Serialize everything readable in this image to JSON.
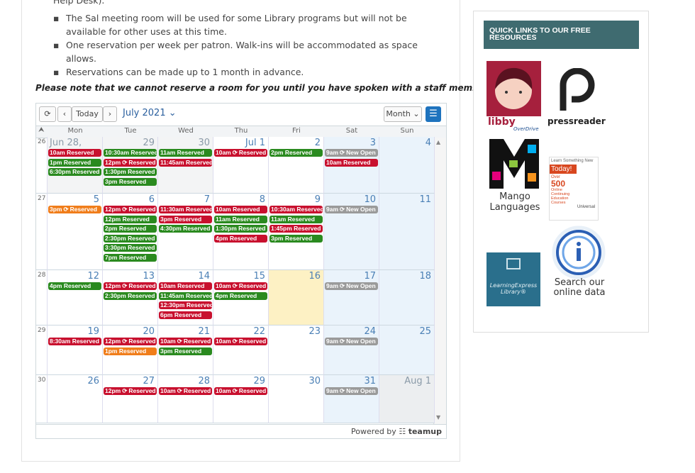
{
  "content": {
    "top_fragment": "Help Desk).",
    "bullets": [
      "The Sal meeting room will be used for some Library programs but will not be available for other uses at this time.",
      "One reservation per week per patron. Walk-ins will be accommodated as space allows.",
      "Reservations can be made up to 1 month in advance."
    ],
    "note": "Please note that we cannot reserve a room for you until you have spoken with a staff member."
  },
  "calendar": {
    "today_button": "Today",
    "month_title": "July 2021",
    "view_button": "Month",
    "weekdays": [
      "Mon",
      "Tue",
      "Wed",
      "Thu",
      "Fri",
      "Sat",
      "Sun"
    ],
    "footer_text": "Powered by",
    "footer_brand": "teamup",
    "weeks": [
      {
        "number": "26",
        "days": [
          {
            "date": "Jun 28, 2021",
            "other_month": true,
            "events": [
              {
                "time": "10am",
                "status": "Reserved",
                "repeat": false,
                "color": "#c8102e"
              },
              {
                "time": "1pm",
                "status": "Reserved",
                "repeat": false,
                "color": "#2a8a1f"
              },
              {
                "time": "6:30pm",
                "status": "Reserved",
                "repeat": false,
                "color": "#2a8a1f"
              }
            ]
          },
          {
            "date": "29",
            "other_month": true,
            "events": [
              {
                "time": "10:30am",
                "status": "Reserved",
                "repeat": false,
                "color": "#2a8a1f"
              },
              {
                "time": "12pm",
                "status": "Reserved",
                "repeat": true,
                "color": "#c8102e"
              },
              {
                "time": "1:30pm",
                "status": "Reserved",
                "repeat": false,
                "color": "#2a8a1f"
              },
              {
                "time": "3pm",
                "status": "Reserved",
                "repeat": false,
                "color": "#2a8a1f"
              }
            ]
          },
          {
            "date": "30",
            "other_month": true,
            "events": [
              {
                "time": "11am",
                "status": "Reserved",
                "repeat": false,
                "color": "#2a8a1f"
              },
              {
                "time": "11:45am",
                "status": "Reserved",
                "repeat": false,
                "color": "#c8102e"
              }
            ]
          },
          {
            "date": "Jul 1",
            "events": [
              {
                "time": "10am",
                "status": "Reserved",
                "repeat": true,
                "color": "#c8102e"
              }
            ]
          },
          {
            "date": "2",
            "events": [
              {
                "time": "2pm",
                "status": "Reserved",
                "repeat": false,
                "color": "#2a8a1f"
              }
            ]
          },
          {
            "date": "3",
            "events": [
              {
                "time": "9am",
                "status": "New Open",
                "repeat": true,
                "color": "#9a9a9a"
              },
              {
                "time": "10am",
                "status": "Reserved",
                "repeat": false,
                "color": "#c8102e"
              }
            ]
          },
          {
            "date": "4",
            "events": []
          }
        ]
      },
      {
        "number": "27",
        "days": [
          {
            "date": "5",
            "events": [
              {
                "time": "3pm",
                "status": "Reserved",
                "repeat": true,
                "color": "#f07d1a"
              }
            ]
          },
          {
            "date": "6",
            "events": [
              {
                "time": "12pm",
                "status": "Reserved",
                "repeat": true,
                "color": "#c8102e"
              },
              {
                "time": "12pm",
                "status": "Reserved",
                "repeat": false,
                "color": "#2a8a1f"
              },
              {
                "time": "2pm",
                "status": "Reserved",
                "repeat": false,
                "color": "#2a8a1f"
              },
              {
                "time": "2:30pm",
                "status": "Reserved",
                "repeat": false,
                "color": "#2a8a1f"
              },
              {
                "time": "3:30pm",
                "status": "Reserved",
                "repeat": false,
                "color": "#2a8a1f"
              },
              {
                "time": "7pm",
                "status": "Reserved",
                "repeat": false,
                "color": "#2a8a1f"
              }
            ]
          },
          {
            "date": "7",
            "events": [
              {
                "time": "11:30am",
                "status": "Reserved",
                "repeat": false,
                "color": "#c8102e"
              },
              {
                "time": "3pm",
                "status": "Reserved",
                "repeat": false,
                "color": "#c8102e"
              },
              {
                "time": "4:30pm",
                "status": "Reserved",
                "repeat": false,
                "color": "#2a8a1f"
              }
            ]
          },
          {
            "date": "8",
            "events": [
              {
                "time": "10am",
                "status": "Reserved",
                "repeat": false,
                "color": "#c8102e"
              },
              {
                "time": "11am",
                "status": "Reserved",
                "repeat": false,
                "color": "#2a8a1f"
              },
              {
                "time": "1:30pm",
                "status": "Reserved",
                "repeat": false,
                "color": "#2a8a1f"
              },
              {
                "time": "4pm",
                "status": "Reserved",
                "repeat": false,
                "color": "#c8102e"
              }
            ]
          },
          {
            "date": "9",
            "events": [
              {
                "time": "10:30am",
                "status": "Reserved",
                "repeat": false,
                "color": "#c8102e"
              },
              {
                "time": "11am",
                "status": "Reserved",
                "repeat": false,
                "color": "#2a8a1f"
              },
              {
                "time": "1:45pm",
                "status": "Reserved",
                "repeat": false,
                "color": "#c8102e"
              },
              {
                "time": "3pm",
                "status": "Reserved",
                "repeat": false,
                "color": "#2a8a1f"
              }
            ]
          },
          {
            "date": "10",
            "events": [
              {
                "time": "9am",
                "status": "New Open",
                "repeat": true,
                "color": "#9a9a9a"
              }
            ]
          },
          {
            "date": "11",
            "events": []
          }
        ]
      },
      {
        "number": "28",
        "days": [
          {
            "date": "12",
            "events": [
              {
                "time": "4pm",
                "status": "Reserved",
                "repeat": false,
                "color": "#2a8a1f"
              }
            ]
          },
          {
            "date": "13",
            "events": [
              {
                "time": "12pm",
                "status": "Reserved",
                "repeat": true,
                "color": "#c8102e"
              },
              {
                "time": "2:30pm",
                "status": "Reserved",
                "repeat": false,
                "color": "#2a8a1f"
              }
            ]
          },
          {
            "date": "14",
            "events": [
              {
                "time": "10am",
                "status": "Reserved",
                "repeat": false,
                "color": "#c8102e"
              },
              {
                "time": "11:45am",
                "status": "Reserved",
                "repeat": false,
                "color": "#2a8a1f"
              },
              {
                "time": "12:30pm",
                "status": "Reserved",
                "repeat": false,
                "color": "#c8102e"
              },
              {
                "time": "6pm",
                "status": "Reserved",
                "repeat": false,
                "color": "#c8102e"
              }
            ]
          },
          {
            "date": "15",
            "events": [
              {
                "time": "10am",
                "status": "Reserved",
                "repeat": true,
                "color": "#c8102e"
              },
              {
                "time": "4pm",
                "status": "Reserved",
                "repeat": false,
                "color": "#2a8a1f"
              }
            ]
          },
          {
            "date": "16",
            "today": true,
            "events": []
          },
          {
            "date": "17",
            "events": [
              {
                "time": "9am",
                "status": "New Open",
                "repeat": true,
                "color": "#9a9a9a"
              }
            ]
          },
          {
            "date": "18",
            "events": []
          }
        ]
      },
      {
        "number": "29",
        "days": [
          {
            "date": "19",
            "events": [
              {
                "time": "8:30am",
                "status": "Reserved",
                "repeat": false,
                "color": "#c8102e"
              }
            ]
          },
          {
            "date": "20",
            "events": [
              {
                "time": "12pm",
                "status": "Reserved",
                "repeat": true,
                "color": "#c8102e"
              },
              {
                "time": "1pm",
                "status": "Reserved",
                "repeat": false,
                "color": "#f07d1a"
              }
            ]
          },
          {
            "date": "21",
            "events": [
              {
                "time": "10am",
                "status": "Reserved",
                "repeat": true,
                "color": "#c8102e"
              },
              {
                "time": "3pm",
                "status": "Reserved",
                "repeat": false,
                "color": "#2a8a1f"
              }
            ]
          },
          {
            "date": "22",
            "events": [
              {
                "time": "10am",
                "status": "Reserved",
                "repeat": true,
                "color": "#c8102e"
              }
            ]
          },
          {
            "date": "23",
            "events": []
          },
          {
            "date": "24",
            "events": [
              {
                "time": "9am",
                "status": "New Open",
                "repeat": true,
                "color": "#9a9a9a"
              }
            ]
          },
          {
            "date": "25",
            "events": []
          }
        ]
      },
      {
        "number": "30",
        "days": [
          {
            "date": "26",
            "events": []
          },
          {
            "date": "27",
            "events": [
              {
                "time": "12pm",
                "status": "Reserved",
                "repeat": true,
                "color": "#c8102e"
              }
            ]
          },
          {
            "date": "28",
            "events": [
              {
                "time": "10am",
                "status": "Reserved",
                "repeat": true,
                "color": "#c8102e"
              }
            ]
          },
          {
            "date": "29",
            "events": [
              {
                "time": "10am",
                "status": "Reserved",
                "repeat": true,
                "color": "#c8102e"
              }
            ]
          },
          {
            "date": "30",
            "events": []
          },
          {
            "date": "31",
            "events": [
              {
                "time": "9am",
                "status": "New Open",
                "repeat": true,
                "color": "#9a9a9a"
              }
            ]
          },
          {
            "date": "Aug 1",
            "other_month": true,
            "events": []
          }
        ]
      }
    ]
  },
  "sidebar": {
    "title": "QUICK LINKS TO OUR FREE RESOURCES",
    "libby": "libby",
    "overdrive": "OverDrive",
    "pressreader": "pressreader",
    "mango": "Mango Languages",
    "universal_top": "Learn Something New",
    "universal_today": "Today!",
    "universal_over": "Over",
    "universal_num": "500",
    "universal_desc": "Online Continuing Education Courses",
    "universal_brand": "Universal",
    "learningexpress": "LearningExpress Library®",
    "search": "Search our online data"
  }
}
